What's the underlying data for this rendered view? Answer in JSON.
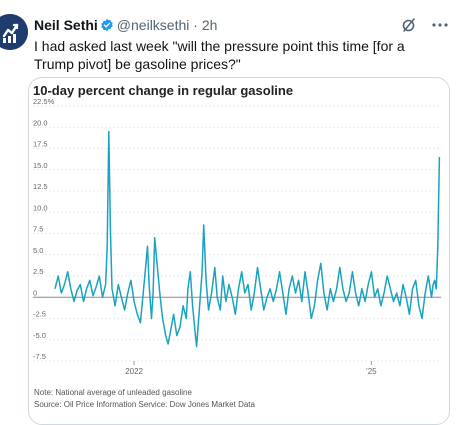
{
  "tweet": {
    "author_name": "Neil Sethi",
    "handle": "@neilksethi",
    "separator": "·",
    "time": "2h",
    "text": "I had asked last week \"will the pressure point this time [for a Trump pivot] be gasoline prices?\"",
    "verified_color": "#1d9bf0",
    "icons": [
      "grok-icon",
      "more-icon"
    ]
  },
  "chart": {
    "title": "10-day percent change in regular gasoline",
    "note": "Note: National average of unleaded gasoline",
    "source": "Source: Oil Price Information Service: Dow Jones Market Data",
    "line_color": "#19a3bf"
  },
  "chart_data": {
    "type": "line",
    "title": "10-day percent change in regular gasoline",
    "xlabel": "",
    "ylabel": "",
    "x_tick_labels": [
      "2022",
      "'25"
    ],
    "y_tick_labels": [
      "22.5%",
      "20.0",
      "17.5",
      "15.0",
      "12.5",
      "10.0",
      "7.5",
      "5.0",
      "2.5",
      "0",
      "-2.5",
      "-5.0",
      "-7.5"
    ],
    "ylim": [
      -7.5,
      22.5
    ],
    "xlim": [
      2021.0,
      2025.88
    ],
    "grid": true,
    "series": [
      {
        "values": [
          [
            2021.0,
            1.0
          ],
          [
            2021.04,
            2.5
          ],
          [
            2021.08,
            0.5
          ],
          [
            2021.12,
            1.5
          ],
          [
            2021.16,
            3.0
          ],
          [
            2021.2,
            1.0
          ],
          [
            2021.24,
            -0.5
          ],
          [
            2021.28,
            0.8
          ],
          [
            2021.32,
            1.5
          ],
          [
            2021.36,
            -0.5
          ],
          [
            2021.4,
            1.0
          ],
          [
            2021.44,
            2.0
          ],
          [
            2021.48,
            0.2
          ],
          [
            2021.52,
            1.2
          ],
          [
            2021.56,
            2.5
          ],
          [
            2021.6,
            0.0
          ],
          [
            2021.64,
            1.5
          ],
          [
            2021.66,
            6.0
          ],
          [
            2021.68,
            19.5
          ],
          [
            2021.7,
            8.0
          ],
          [
            2021.72,
            1.0
          ],
          [
            2021.76,
            -1.0
          ],
          [
            2021.8,
            1.5
          ],
          [
            2021.84,
            0.0
          ],
          [
            2021.88,
            -1.5
          ],
          [
            2021.92,
            0.5
          ],
          [
            2021.96,
            2.0
          ],
          [
            2022.0,
            -0.5
          ],
          [
            2022.04,
            -2.0
          ],
          [
            2022.08,
            -3.0
          ],
          [
            2022.1,
            -1.0
          ],
          [
            2022.14,
            3.0
          ],
          [
            2022.17,
            6.0
          ],
          [
            2022.19,
            1.5
          ],
          [
            2022.22,
            -2.5
          ],
          [
            2022.24,
            0.5
          ],
          [
            2022.26,
            7.0
          ],
          [
            2022.3,
            3.0
          ],
          [
            2022.33,
            0.0
          ],
          [
            2022.36,
            -2.5
          ],
          [
            2022.4,
            -4.5
          ],
          [
            2022.43,
            -5.5
          ],
          [
            2022.46,
            -4.0
          ],
          [
            2022.5,
            -2.0
          ],
          [
            2022.54,
            -4.5
          ],
          [
            2022.58,
            -3.5
          ],
          [
            2022.62,
            -1.0
          ],
          [
            2022.66,
            -2.5
          ],
          [
            2022.68,
            1.0
          ],
          [
            2022.71,
            3.0
          ],
          [
            2022.74,
            -1.0
          ],
          [
            2022.77,
            -4.0
          ],
          [
            2022.79,
            -5.8
          ],
          [
            2022.82,
            -2.0
          ],
          [
            2022.86,
            3.0
          ],
          [
            2022.88,
            8.5
          ],
          [
            2022.91,
            2.0
          ],
          [
            2022.94,
            -1.5
          ],
          [
            2022.98,
            0.5
          ],
          [
            2023.02,
            3.5
          ],
          [
            2023.05,
            0.0
          ],
          [
            2023.09,
            -1.5
          ],
          [
            2023.12,
            2.5
          ],
          [
            2023.16,
            -0.5
          ],
          [
            2023.2,
            1.5
          ],
          [
            2023.24,
            0.0
          ],
          [
            2023.28,
            -2.0
          ],
          [
            2023.32,
            1.0
          ],
          [
            2023.36,
            3.0
          ],
          [
            2023.4,
            0.5
          ],
          [
            2023.44,
            1.5
          ],
          [
            2023.48,
            -1.5
          ],
          [
            2023.52,
            0.5
          ],
          [
            2023.56,
            3.5
          ],
          [
            2023.6,
            1.0
          ],
          [
            2023.64,
            -1.5
          ],
          [
            2023.68,
            0.0
          ],
          [
            2023.72,
            1.0
          ],
          [
            2023.76,
            -0.5
          ],
          [
            2023.8,
            1.0
          ],
          [
            2023.84,
            3.0
          ],
          [
            2023.88,
            0.5
          ],
          [
            2023.92,
            -2.0
          ],
          [
            2023.96,
            1.0
          ],
          [
            2024.0,
            2.5
          ],
          [
            2024.04,
            0.5
          ],
          [
            2024.08,
            2.0
          ],
          [
            2024.12,
            -0.5
          ],
          [
            2024.16,
            3.0
          ],
          [
            2024.2,
            0.5
          ],
          [
            2024.24,
            -2.5
          ],
          [
            2024.28,
            -1.0
          ],
          [
            2024.32,
            2.0
          ],
          [
            2024.36,
            4.0
          ],
          [
            2024.4,
            0.5
          ],
          [
            2024.44,
            -1.5
          ],
          [
            2024.48,
            1.0
          ],
          [
            2024.52,
            -0.5
          ],
          [
            2024.56,
            1.0
          ],
          [
            2024.6,
            3.5
          ],
          [
            2024.64,
            1.0
          ],
          [
            2024.68,
            -0.5
          ],
          [
            2024.72,
            0.5
          ],
          [
            2024.76,
            3.0
          ],
          [
            2024.8,
            0.5
          ],
          [
            2024.84,
            -1.0
          ],
          [
            2024.88,
            1.0
          ],
          [
            2024.92,
            -0.5
          ],
          [
            2024.96,
            1.5
          ],
          [
            2025.0,
            3.0
          ],
          [
            2025.04,
            0.0
          ],
          [
            2025.08,
            1.0
          ],
          [
            2025.12,
            -1.0
          ],
          [
            2025.16,
            0.5
          ],
          [
            2025.2,
            2.5
          ],
          [
            2025.24,
            1.0
          ],
          [
            2025.28,
            -0.5
          ],
          [
            2025.32,
            0.5
          ],
          [
            2025.36,
            -1.0
          ],
          [
            2025.4,
            1.5
          ],
          [
            2025.44,
            0.0
          ],
          [
            2025.48,
            -2.0
          ],
          [
            2025.52,
            1.0
          ],
          [
            2025.56,
            2.0
          ],
          [
            2025.6,
            -1.0
          ],
          [
            2025.64,
            -2.5
          ],
          [
            2025.68,
            0.5
          ],
          [
            2025.72,
            2.5
          ],
          [
            2025.76,
            0.0
          ],
          [
            2025.78,
            1.5
          ],
          [
            2025.8,
            2.0
          ],
          [
            2025.82,
            1.0
          ],
          [
            2025.84,
            6.0
          ],
          [
            2025.86,
            16.5
          ]
        ]
      }
    ]
  }
}
